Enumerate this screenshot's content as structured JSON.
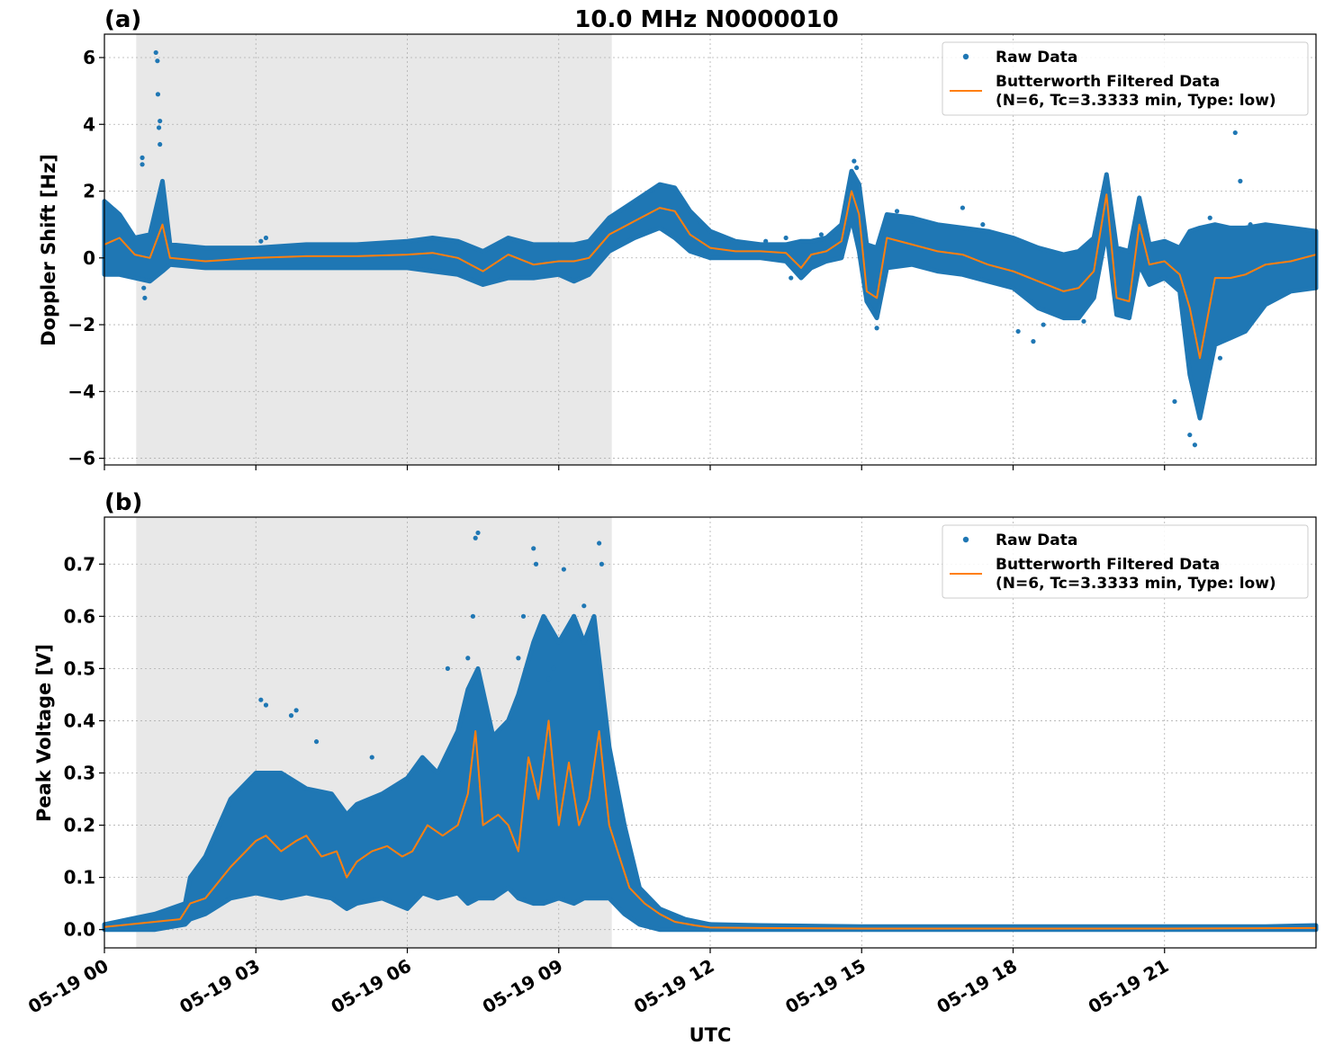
{
  "figure": {
    "title": "10.0 MHz N0000010",
    "xlabel": "UTC",
    "x_tick_labels": [
      "05-19 00",
      "05-19 03",
      "05-19 06",
      "05-19 09",
      "05-19 12",
      "05-19 15",
      "05-19 18",
      "05-19 21"
    ],
    "colors": {
      "raw": "#1f77b4",
      "filtered": "#ff7f0e",
      "shade": "#e8e8e8",
      "grid": "#b0b0b0"
    }
  },
  "chart_data": [
    {
      "type": "scatter",
      "panel_label": "(a)",
      "ylabel": "Doppler Shift [Hz]",
      "x_unit": "hours UTC on 05-19",
      "xlim": [
        0,
        24
      ],
      "ylim": [
        -6.2,
        6.7
      ],
      "y_ticks": [
        -6,
        -4,
        -2,
        0,
        2,
        4,
        6
      ],
      "y_tick_labels": [
        "−6",
        "−4",
        "−2",
        "0",
        "2",
        "4",
        "6"
      ],
      "grid": true,
      "legend": {
        "position": "top-right",
        "entries": [
          {
            "label": "Raw Data",
            "kind": "marker"
          },
          {
            "label": "Butterworth Filtered Data",
            "label2": "(N=6, Tc=3.3333 min, Type: low)",
            "kind": "line"
          }
        ]
      },
      "shaded_span": [
        0.63,
        10.05
      ],
      "series": [
        {
          "name": "Raw Data",
          "kind": "band",
          "x": [
            0,
            0.3,
            0.6,
            0.9,
            1.15,
            1.3,
            2,
            3,
            4,
            5,
            6,
            6.5,
            7,
            7.5,
            8,
            8.5,
            9,
            9.3,
            9.6,
            10,
            10.5,
            11,
            11.3,
            11.6,
            12,
            12.5,
            13,
            13.5,
            13.8,
            14,
            14.3,
            14.6,
            14.8,
            14.95,
            15.1,
            15.3,
            15.5,
            16,
            16.5,
            17,
            17.5,
            18,
            18.5,
            19,
            19.3,
            19.6,
            19.85,
            20.05,
            20.3,
            20.5,
            20.7,
            21,
            21.3,
            21.5,
            21.7,
            22,
            22.3,
            22.6,
            23,
            23.5,
            24
          ],
          "low": [
            -0.5,
            -0.5,
            -0.6,
            -0.7,
            -0.4,
            -0.2,
            -0.3,
            -0.3,
            -0.3,
            -0.3,
            -0.3,
            -0.4,
            -0.5,
            -0.8,
            -0.6,
            -0.6,
            -0.5,
            -0.7,
            -0.5,
            0.2,
            0.6,
            0.9,
            0.6,
            0.2,
            0.0,
            0.0,
            0.0,
            -0.1,
            -0.6,
            -0.3,
            -0.1,
            0.0,
            1.2,
            0.2,
            -1.3,
            -1.8,
            -0.3,
            -0.2,
            -0.4,
            -0.5,
            -0.7,
            -0.9,
            -1.5,
            -1.8,
            -1.8,
            -1.2,
            0.8,
            -1.7,
            -1.8,
            -0.2,
            -0.8,
            -0.6,
            -1.0,
            -3.5,
            -4.8,
            -2.6,
            -2.4,
            -2.2,
            -1.4,
            -1.0,
            -0.9
          ],
          "high": [
            1.7,
            1.3,
            0.6,
            0.7,
            2.3,
            0.4,
            0.3,
            0.3,
            0.4,
            0.4,
            0.5,
            0.6,
            0.5,
            0.2,
            0.6,
            0.4,
            0.4,
            0.4,
            0.5,
            1.2,
            1.7,
            2.2,
            2.1,
            1.4,
            0.8,
            0.5,
            0.4,
            0.4,
            0.5,
            0.5,
            0.6,
            1.0,
            2.6,
            2.2,
            0.4,
            0.3,
            1.3,
            1.2,
            1.0,
            0.9,
            0.8,
            0.6,
            0.3,
            0.1,
            0.2,
            0.6,
            2.5,
            0.3,
            0.2,
            1.8,
            0.4,
            0.5,
            0.3,
            0.8,
            0.9,
            1.0,
            0.9,
            0.9,
            1.0,
            0.9,
            0.8
          ]
        },
        {
          "name": "Butterworth Filtered Data",
          "kind": "line",
          "x": [
            0,
            0.3,
            0.6,
            0.9,
            1.15,
            1.3,
            2,
            3,
            4,
            5,
            6,
            6.5,
            7,
            7.5,
            8,
            8.5,
            9,
            9.3,
            9.6,
            10,
            10.5,
            11,
            11.3,
            11.6,
            12,
            12.5,
            13,
            13.5,
            13.8,
            14,
            14.3,
            14.6,
            14.8,
            14.95,
            15.1,
            15.3,
            15.5,
            16,
            16.5,
            17,
            17.5,
            18,
            18.5,
            19,
            19.3,
            19.6,
            19.85,
            20.05,
            20.3,
            20.5,
            20.7,
            21,
            21.3,
            21.5,
            21.7,
            22,
            22.3,
            22.6,
            23,
            23.5,
            24
          ],
          "y": [
            0.4,
            0.6,
            0.1,
            0.0,
            1.0,
            0.0,
            -0.1,
            0.0,
            0.05,
            0.05,
            0.1,
            0.15,
            0.0,
            -0.4,
            0.1,
            -0.2,
            -0.1,
            -0.1,
            0.0,
            0.7,
            1.1,
            1.5,
            1.4,
            0.7,
            0.3,
            0.2,
            0.2,
            0.15,
            -0.3,
            0.1,
            0.2,
            0.5,
            2.0,
            1.3,
            -1.0,
            -1.2,
            0.6,
            0.4,
            0.2,
            0.1,
            -0.2,
            -0.4,
            -0.7,
            -1.0,
            -0.9,
            -0.4,
            1.9,
            -1.2,
            -1.3,
            1.0,
            -0.2,
            -0.1,
            -0.5,
            -1.5,
            -3.0,
            -0.6,
            -0.6,
            -0.5,
            -0.2,
            -0.1,
            0.1
          ]
        },
        {
          "name": "Raw Data",
          "kind": "outliers",
          "x": [
            0.75,
            0.75,
            0.78,
            0.8,
            1.02,
            1.05,
            1.06,
            1.08,
            1.1,
            1.1,
            3.1,
            3.2,
            13.1,
            13.5,
            13.6,
            14.2,
            14.85,
            14.9,
            15.3,
            15.7,
            16.0,
            17.0,
            17.4,
            18.1,
            18.4,
            18.6,
            19.4,
            21.2,
            21.5,
            21.6,
            21.9,
            22.1,
            22.5,
            22.4,
            22.7
          ],
          "y": [
            3.0,
            2.8,
            -0.9,
            -1.2,
            6.15,
            5.9,
            4.9,
            3.9,
            3.4,
            4.1,
            0.5,
            0.6,
            0.5,
            0.6,
            -0.6,
            0.7,
            2.9,
            2.7,
            -2.1,
            1.4,
            1.1,
            1.5,
            1.0,
            -2.2,
            -2.5,
            -2.0,
            -1.9,
            -4.3,
            -5.3,
            -5.6,
            1.2,
            -3.0,
            2.3,
            3.75,
            1.0
          ]
        }
      ]
    },
    {
      "type": "scatter",
      "panel_label": "(b)",
      "ylabel": "Peak Voltage [V]",
      "x_unit": "hours UTC on 05-19",
      "xlim": [
        0,
        24
      ],
      "ylim": [
        -0.035,
        0.79
      ],
      "y_ticks": [
        0,
        0.1,
        0.2,
        0.3,
        0.4,
        0.5,
        0.6,
        0.7
      ],
      "y_tick_labels": [
        "0.0",
        "0.1",
        "0.2",
        "0.3",
        "0.4",
        "0.5",
        "0.6",
        "0.7"
      ],
      "grid": true,
      "legend": {
        "position": "top-right",
        "entries": [
          {
            "label": "Raw Data",
            "kind": "marker"
          },
          {
            "label": "Butterworth Filtered Data",
            "label2": "(N=6, Tc=3.3333 min, Type: low)",
            "kind": "line"
          }
        ]
      },
      "shaded_span": [
        0.63,
        10.05
      ],
      "series": [
        {
          "name": "Raw Data",
          "kind": "band",
          "x": [
            0,
            0.5,
            1,
            1.6,
            1.7,
            2,
            2.5,
            3,
            3.5,
            4,
            4.5,
            4.8,
            5,
            5.5,
            6,
            6.3,
            6.6,
            7,
            7.2,
            7.4,
            7.7,
            8,
            8.2,
            8.5,
            8.7,
            9,
            9.3,
            9.5,
            9.7,
            10,
            10.3,
            10.6,
            11,
            11.5,
            12,
            13,
            15,
            18,
            21,
            23,
            24
          ],
          "low": [
            0.0,
            0.0,
            0.0,
            0.01,
            0.02,
            0.03,
            0.06,
            0.07,
            0.06,
            0.07,
            0.06,
            0.04,
            0.05,
            0.06,
            0.04,
            0.07,
            0.06,
            0.07,
            0.05,
            0.06,
            0.06,
            0.08,
            0.06,
            0.05,
            0.05,
            0.06,
            0.05,
            0.06,
            0.06,
            0.06,
            0.03,
            0.01,
            0.0,
            0.0,
            0.0,
            0.0,
            0.0,
            0.0,
            0.0,
            0.0,
            0.0
          ],
          "high": [
            0.01,
            0.02,
            0.03,
            0.05,
            0.1,
            0.14,
            0.25,
            0.3,
            0.3,
            0.27,
            0.26,
            0.22,
            0.24,
            0.26,
            0.29,
            0.33,
            0.3,
            0.38,
            0.46,
            0.5,
            0.37,
            0.4,
            0.45,
            0.55,
            0.6,
            0.55,
            0.6,
            0.55,
            0.6,
            0.35,
            0.2,
            0.08,
            0.04,
            0.02,
            0.01,
            0.008,
            0.006,
            0.006,
            0.006,
            0.006,
            0.008
          ]
        },
        {
          "name": "Butterworth Filtered Data",
          "kind": "line",
          "x": [
            0,
            0.5,
            1,
            1.5,
            1.7,
            2,
            2.5,
            3,
            3.2,
            3.5,
            3.8,
            4,
            4.3,
            4.6,
            4.8,
            5,
            5.3,
            5.6,
            5.9,
            6.1,
            6.4,
            6.7,
            7,
            7.2,
            7.35,
            7.5,
            7.8,
            8,
            8.2,
            8.4,
            8.6,
            8.8,
            9,
            9.2,
            9.4,
            9.6,
            9.8,
            10,
            10.2,
            10.4,
            10.7,
            11,
            11.3,
            11.7,
            12,
            13,
            15,
            18,
            21,
            24
          ],
          "y": [
            0.005,
            0.01,
            0.015,
            0.02,
            0.05,
            0.06,
            0.12,
            0.17,
            0.18,
            0.15,
            0.17,
            0.18,
            0.14,
            0.15,
            0.1,
            0.13,
            0.15,
            0.16,
            0.14,
            0.15,
            0.2,
            0.18,
            0.2,
            0.26,
            0.38,
            0.2,
            0.22,
            0.2,
            0.15,
            0.33,
            0.25,
            0.4,
            0.2,
            0.32,
            0.2,
            0.25,
            0.38,
            0.2,
            0.14,
            0.08,
            0.05,
            0.03,
            0.015,
            0.008,
            0.004,
            0.003,
            0.002,
            0.002,
            0.002,
            0.003
          ]
        },
        {
          "name": "Raw Data",
          "kind": "outliers",
          "x": [
            3.1,
            3.2,
            3.7,
            3.8,
            4.2,
            5.3,
            6.8,
            7.2,
            7.3,
            7.35,
            7.4,
            8.2,
            8.3,
            8.5,
            8.55,
            8.8,
            8.9,
            9.1,
            9.3,
            9.5,
            9.7,
            9.8,
            9.85
          ],
          "y": [
            0.44,
            0.43,
            0.41,
            0.42,
            0.36,
            0.33,
            0.5,
            0.52,
            0.6,
            0.75,
            0.76,
            0.52,
            0.6,
            0.73,
            0.7,
            0.48,
            0.5,
            0.69,
            0.6,
            0.62,
            0.56,
            0.74,
            0.7
          ]
        }
      ]
    }
  ]
}
